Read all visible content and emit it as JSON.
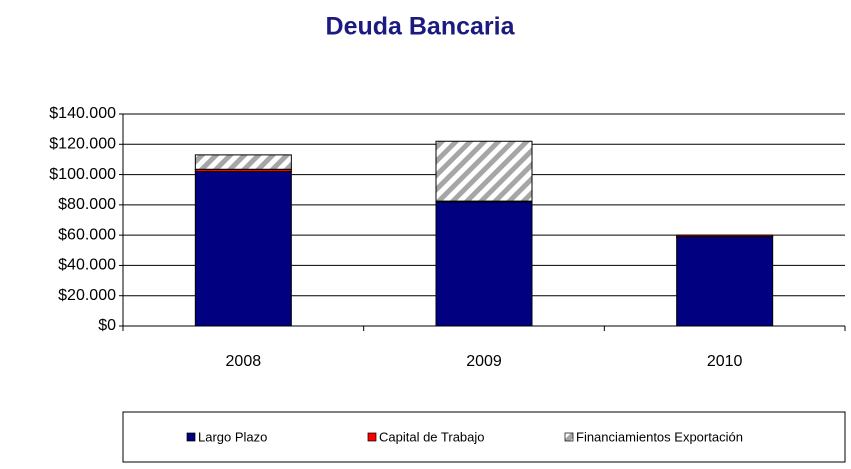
{
  "chart_data": {
    "type": "stacked_bar",
    "title": "Deuda Bancaria",
    "categories": [
      "2008",
      "2009",
      "2010"
    ],
    "series": [
      {
        "name": "Largo Plazo",
        "color": "#000080",
        "values": [
          102000,
          82000,
          59000
        ]
      },
      {
        "name": "Capital de Trabajo",
        "color": "#ff0000",
        "values": [
          1500,
          500,
          1000
        ]
      },
      {
        "name": "Financiamientos  Exportación",
        "color": "#a6a6a6",
        "hatch": true,
        "values": [
          9500,
          39500,
          0
        ]
      }
    ],
    "ylim": [
      0,
      140000
    ],
    "yticks": [
      {
        "value": 0,
        "label": "$0"
      },
      {
        "value": 20000,
        "label": "$20.000"
      },
      {
        "value": 40000,
        "label": "$40.000"
      },
      {
        "value": 60000,
        "label": "$60.000"
      },
      {
        "value": 80000,
        "label": "$80.000"
      },
      {
        "value": 100000,
        "label": "$100.000"
      },
      {
        "value": 120000,
        "label": "$120.000"
      },
      {
        "value": 140000,
        "label": "$140.000"
      }
    ],
    "grid": true
  }
}
